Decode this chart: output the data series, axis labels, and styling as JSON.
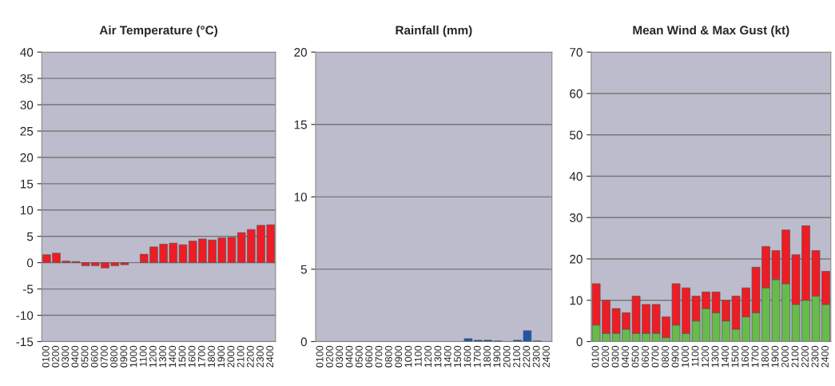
{
  "chart_data": [
    {
      "type": "bar",
      "title": "Air Temperature (°C)",
      "categories": [
        "0100",
        "0200",
        "0300",
        "0400",
        "0500",
        "0600",
        "0700",
        "0800",
        "0900",
        "1000",
        "1100",
        "1200",
        "1300",
        "1400",
        "1500",
        "1600",
        "1700",
        "1800",
        "1900",
        "2000",
        "2100",
        "2200",
        "2300",
        "2400"
      ],
      "series": [
        {
          "color": "#ee1c25",
          "values": [
            1.5,
            1.8,
            0.3,
            0.2,
            -0.6,
            -0.6,
            -1.0,
            -0.6,
            -0.4,
            null,
            1.6,
            3.0,
            3.5,
            3.7,
            3.4,
            4.1,
            4.5,
            4.3,
            4.7,
            4.8,
            5.7,
            6.3,
            7.1,
            7.2
          ]
        }
      ],
      "ylim": [
        -15,
        40
      ],
      "yticks": [
        -15,
        -10,
        -5,
        0,
        5,
        10,
        15,
        20,
        25,
        30,
        35,
        40
      ],
      "grid": "y",
      "legend": false
    },
    {
      "type": "bar",
      "title": "Rainfall (mm)",
      "categories": [
        "0100",
        "0200",
        "0300",
        "0400",
        "0500",
        "0600",
        "0700",
        "0800",
        "0900",
        "1000",
        "1100",
        "1200",
        "1300",
        "1400",
        "1500",
        "1600",
        "1700",
        "1800",
        "1900",
        "2000",
        "2100",
        "2200",
        "2300",
        "2400"
      ],
      "series": [
        {
          "color": "#2255aa",
          "values": [
            0,
            0,
            0,
            0,
            0,
            0,
            0,
            0,
            0,
            0,
            0,
            0,
            0,
            0,
            0,
            0.2,
            0.1,
            0.1,
            0.05,
            0,
            0.1,
            0.75,
            0.05,
            0
          ]
        }
      ],
      "ylim": [
        0,
        20
      ],
      "yticks": [
        0,
        5,
        10,
        15,
        20
      ],
      "grid": "y",
      "legend": false
    },
    {
      "type": "bar",
      "title": "Mean Wind & Max Gust (kt)",
      "stacked": true,
      "categories": [
        "0100",
        "0200",
        "0300",
        "0400",
        "0500",
        "0600",
        "0700",
        "0800",
        "0900",
        "1000",
        "1100",
        "1200",
        "1300",
        "1400",
        "1500",
        "1600",
        "1700",
        "1800",
        "1900",
        "2000",
        "2100",
        "2200",
        "2300",
        "2400"
      ],
      "series": [
        {
          "color": "#66bb4a",
          "values": [
            4,
            2,
            2,
            3,
            2,
            2,
            2,
            1,
            4,
            2,
            5,
            8,
            7,
            5,
            3,
            6,
            7,
            13,
            15,
            14,
            9,
            10,
            11,
            9
          ]
        },
        {
          "color": "#ee1c25",
          "values": [
            10,
            8,
            6,
            4,
            9,
            7,
            7,
            5,
            10,
            11,
            6,
            4,
            5,
            5,
            8,
            7,
            11,
            10,
            7,
            13,
            12,
            18,
            11,
            8
          ]
        }
      ],
      "ylim": [
        0,
        70
      ],
      "yticks": [
        0,
        10,
        20,
        30,
        40,
        50,
        60,
        70
      ],
      "grid": "y",
      "legend": false
    }
  ]
}
